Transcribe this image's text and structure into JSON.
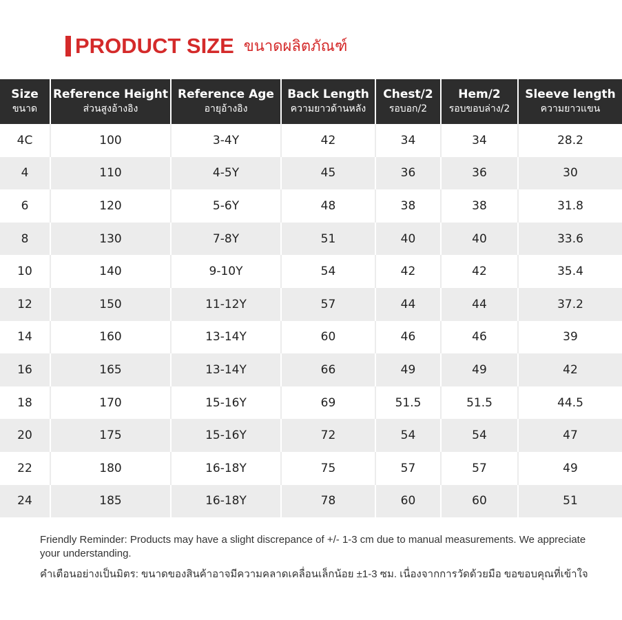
{
  "header": {
    "title": "PRODUCT SIZE",
    "subtitle": "ขนาดผลิตภัณฑ์"
  },
  "table": {
    "columns": [
      {
        "en": "Size",
        "th": "ขนาด"
      },
      {
        "en": "Reference Height",
        "th": "ส่วนสูงอ้างอิง"
      },
      {
        "en": "Reference Age",
        "th": "อายุอ้างอิง"
      },
      {
        "en": "Back Length",
        "th": "ความยาวด้านหลัง"
      },
      {
        "en": "Chest/2",
        "th": "รอบอก/2"
      },
      {
        "en": "Hem/2",
        "th": "รอบขอบล่าง/2"
      },
      {
        "en": "Sleeve length",
        "th": "ความยาวแขน"
      }
    ],
    "rows": [
      [
        "4C",
        "100",
        "3-4Y",
        "42",
        "34",
        "34",
        "28.2"
      ],
      [
        "4",
        "110",
        "4-5Y",
        "45",
        "36",
        "36",
        "30"
      ],
      [
        "6",
        "120",
        "5-6Y",
        "48",
        "38",
        "38",
        "31.8"
      ],
      [
        "8",
        "130",
        "7-8Y",
        "51",
        "40",
        "40",
        "33.6"
      ],
      [
        "10",
        "140",
        "9-10Y",
        "54",
        "42",
        "42",
        "35.4"
      ],
      [
        "12",
        "150",
        "11-12Y",
        "57",
        "44",
        "44",
        "37.2"
      ],
      [
        "14",
        "160",
        "13-14Y",
        "60",
        "46",
        "46",
        "39"
      ],
      [
        "16",
        "165",
        "13-14Y",
        "66",
        "49",
        "49",
        "42"
      ],
      [
        "18",
        "170",
        "15-16Y",
        "69",
        "51.5",
        "51.5",
        "44.5"
      ],
      [
        "20",
        "175",
        "15-16Y",
        "72",
        "54",
        "54",
        "47"
      ],
      [
        "22",
        "180",
        "16-18Y",
        "75",
        "57",
        "57",
        "49"
      ],
      [
        "24",
        "185",
        "16-18Y",
        "78",
        "60",
        "60",
        "51"
      ]
    ]
  },
  "notes": {
    "en": "Friendly Reminder: Products may have a slight discrepance of +/- 1-3 cm due to manual measurements. We appreciate your understanding.",
    "th": "คำเตือนอย่างเป็นมิตร: ขนาดของสินค้าอาจมีความคลาดเคลื่อนเล็กน้อย ±1-3 ซม. เนื่องจากการวัดด้วยมือ ขอขอบคุณที่เข้าใจ"
  }
}
